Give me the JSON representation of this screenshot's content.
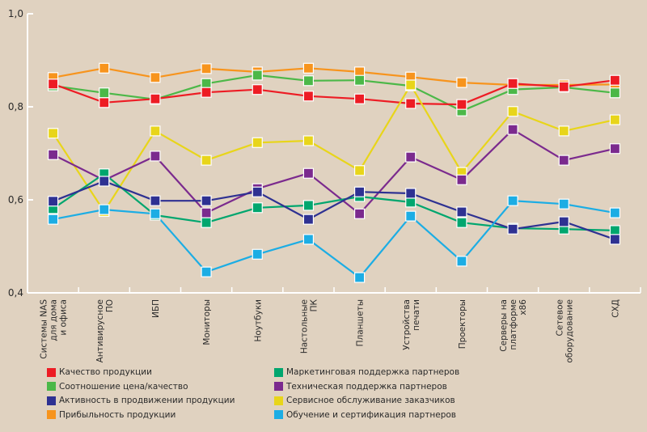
{
  "chart_data": {
    "type": "line",
    "title": "",
    "xlabel": "",
    "ylabel": "",
    "ylim": [
      0.4,
      1.0
    ],
    "yticks": [
      "0,4",
      "0,6",
      "0,8",
      "1,0"
    ],
    "ytick_values": [
      0.4,
      0.6,
      0.8,
      1.0
    ],
    "grid": false,
    "legend_position": "bottom",
    "marker": "square",
    "categories": [
      [
        "Системы NAS",
        "для дома",
        "и офиса"
      ],
      [
        "Антивирусное",
        "ПО"
      ],
      [
        "ИБП"
      ],
      [
        "Мониторы"
      ],
      [
        "Ноутбуки"
      ],
      [
        "Настольные",
        "ПК"
      ],
      [
        "Планшеты"
      ],
      [
        "Устройства",
        "печати"
      ],
      [
        "Проекторы"
      ],
      [
        "Серверы на",
        "платформе",
        "x86"
      ],
      [
        "Сетевое",
        "оборудование"
      ],
      [
        "СХД"
      ]
    ],
    "series": [
      {
        "name": "Прибыльность продукции",
        "color": "#f7941d",
        "values": [
          0.863,
          0.883,
          0.863,
          0.882,
          0.875,
          0.883,
          0.875,
          0.864,
          0.852,
          0.847,
          0.847,
          0.848
        ]
      },
      {
        "name": "Соотношение цена/качество",
        "color": "#4cb848",
        "values": [
          0.845,
          0.83,
          0.816,
          0.85,
          0.868,
          0.856,
          0.857,
          0.845,
          0.791,
          0.837,
          0.842,
          0.83
        ]
      },
      {
        "name": "Качество продукции",
        "color": "#ed1c24",
        "values": [
          0.849,
          0.809,
          0.817,
          0.831,
          0.837,
          0.823,
          0.817,
          0.807,
          0.805,
          0.85,
          0.843,
          0.857
        ]
      },
      {
        "name": "Сервисное обслуживание заказчиков",
        "color": "#e8d51a",
        "values": [
          0.743,
          0.575,
          0.748,
          0.685,
          0.723,
          0.727,
          0.663,
          0.847,
          0.659,
          0.79,
          0.748,
          0.772
        ]
      },
      {
        "name": "Техническая поддержка партнеров",
        "color": "#7b2a8e",
        "values": [
          0.697,
          0.642,
          0.694,
          0.572,
          0.624,
          0.657,
          0.57,
          0.692,
          0.643,
          0.751,
          0.685,
          0.71
        ]
      },
      {
        "name": "Маркетинговая поддержка партнеров",
        "color": "#00a66e",
        "values": [
          0.581,
          0.656,
          0.567,
          0.551,
          0.583,
          0.588,
          0.607,
          0.595,
          0.551,
          0.539,
          0.537,
          0.534
        ]
      },
      {
        "name": "Активность в продвижении продукции",
        "color": "#2e3192",
        "values": [
          0.597,
          0.64,
          0.598,
          0.598,
          0.617,
          0.558,
          0.617,
          0.614,
          0.574,
          0.537,
          0.553,
          0.515
        ]
      },
      {
        "name": "Обучение и сертификация партнеров",
        "color": "#1cade4",
        "values": [
          0.558,
          0.579,
          0.57,
          0.445,
          0.483,
          0.515,
          0.433,
          0.565,
          0.468,
          0.598,
          0.591,
          0.572
        ]
      }
    ],
    "legend": [
      {
        "label": "Качество продукции",
        "color": "#ed1c24"
      },
      {
        "label": "Соотношение цена/качество",
        "color": "#4cb848"
      },
      {
        "label": "Активность в продвижении продукции",
        "color": "#2e3192"
      },
      {
        "label": "Прибыльность продукции",
        "color": "#f7941d"
      },
      {
        "label": "Маркетинговая поддержка партнеров",
        "color": "#00a66e"
      },
      {
        "label": "Техническая поддержка партнеров",
        "color": "#7b2a8e"
      },
      {
        "label": "Сервисное обслуживание заказчиков",
        "color": "#e8d51a"
      },
      {
        "label": "Обучение и сертификация партнеров",
        "color": "#1cade4"
      }
    ]
  }
}
